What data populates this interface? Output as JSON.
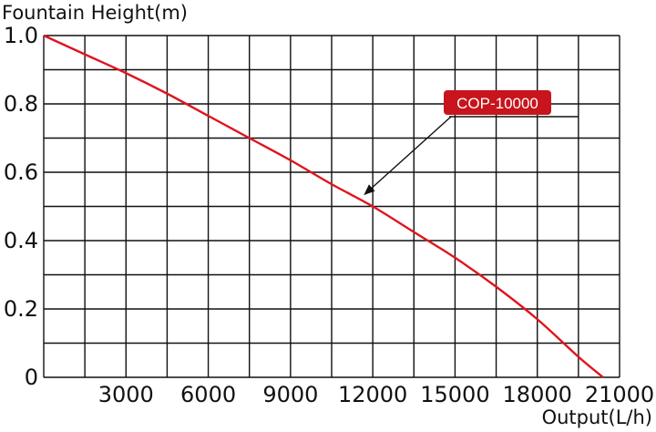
{
  "chart_data": {
    "type": "line",
    "ylabel": "Fountain Height(m)",
    "xlabel": "Output(L/h)",
    "xlim": [
      0,
      21000
    ],
    "ylim": [
      0,
      1.0
    ],
    "x_ticks": [
      "3000",
      "6000",
      "9000",
      "12000",
      "15000",
      "18000",
      "21000"
    ],
    "y_ticks": [
      "0",
      "0.2",
      "0.4",
      "0.6",
      "0.8",
      "1.0"
    ],
    "grid": true,
    "series": [
      {
        "name": "COP-10000",
        "color": "#e0141e",
        "x": [
          0,
          1500,
          3000,
          4500,
          6000,
          7500,
          9000,
          10500,
          12000,
          13500,
          15000,
          16500,
          18000,
          19500,
          20400
        ],
        "y": [
          1.0,
          0.945,
          0.89,
          0.83,
          0.765,
          0.7,
          0.635,
          0.565,
          0.5,
          0.425,
          0.35,
          0.265,
          0.17,
          0.06,
          0.0
        ]
      }
    ],
    "annotation": {
      "text": "COP-10000",
      "points_to": {
        "x": 11700,
        "y": 0.535
      }
    }
  }
}
